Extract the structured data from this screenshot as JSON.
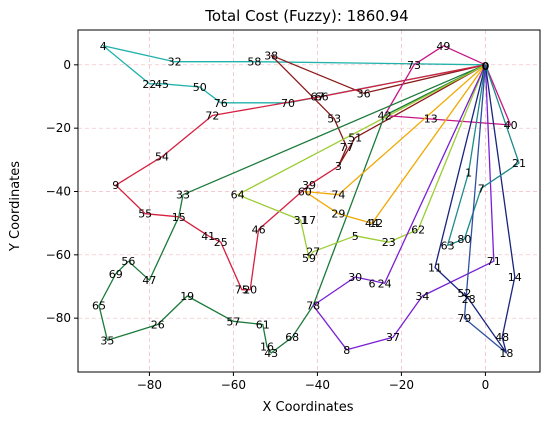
{
  "chart_data": {
    "type": "line",
    "title": "Total Cost (Fuzzy): 1860.94",
    "xlabel": "X Coordinates",
    "ylabel": "Y Coordinates",
    "xlim": [
      -97,
      13
    ],
    "ylim": [
      -97,
      11
    ],
    "xticks": [
      -80,
      -60,
      -40,
      -20,
      0
    ],
    "yticks": [
      0,
      -20,
      -40,
      -60,
      -80
    ],
    "grid": true,
    "depot": {
      "label": "0",
      "x": 0,
      "y": 0
    },
    "nodes": [
      {
        "id": "1",
        "x": -4,
        "y": -34
      },
      {
        "id": "3",
        "x": -35,
        "y": -32
      },
      {
        "id": "4",
        "x": -91,
        "y": 6
      },
      {
        "id": "5",
        "x": -31,
        "y": -54
      },
      {
        "id": "6",
        "x": -27,
        "y": -69
      },
      {
        "id": "7",
        "x": -1,
        "y": -39
      },
      {
        "id": "8",
        "x": -33,
        "y": -90
      },
      {
        "id": "9",
        "x": -88,
        "y": -38
      },
      {
        "id": "11",
        "x": -12,
        "y": -64
      },
      {
        "id": "12",
        "x": -26,
        "y": -50
      },
      {
        "id": "13",
        "x": -13,
        "y": -17
      },
      {
        "id": "14",
        "x": 7,
        "y": -67
      },
      {
        "id": "15",
        "x": -73,
        "y": -48
      },
      {
        "id": "16",
        "x": -52,
        "y": -89
      },
      {
        "id": "17",
        "x": -42,
        "y": -49
      },
      {
        "id": "18",
        "x": 5,
        "y": -91
      },
      {
        "id": "19",
        "x": -71,
        "y": -73
      },
      {
        "id": "20",
        "x": -56,
        "y": -71
      },
      {
        "id": "21",
        "x": 8,
        "y": -31
      },
      {
        "id": "22",
        "x": -80,
        "y": -6
      },
      {
        "id": "23",
        "x": -23,
        "y": -56
      },
      {
        "id": "24",
        "x": -24,
        "y": -69
      },
      {
        "id": "25",
        "x": -63,
        "y": -56
      },
      {
        "id": "26",
        "x": -78,
        "y": -82
      },
      {
        "id": "27",
        "x": -41,
        "y": -59
      },
      {
        "id": "28",
        "x": -4,
        "y": -74
      },
      {
        "id": "29",
        "x": -35,
        "y": -47
      },
      {
        "id": "30",
        "x": -31,
        "y": -67
      },
      {
        "id": "31",
        "x": -44,
        "y": -49
      },
      {
        "id": "32",
        "x": -74,
        "y": 1
      },
      {
        "id": "33",
        "x": -72,
        "y": -41
      },
      {
        "id": "34",
        "x": -15,
        "y": -73
      },
      {
        "id": "35",
        "x": -90,
        "y": -87
      },
      {
        "id": "36",
        "x": -29,
        "y": -9
      },
      {
        "id": "37",
        "x": -22,
        "y": -86
      },
      {
        "id": "38",
        "x": -51,
        "y": 3
      },
      {
        "id": "39",
        "x": -42,
        "y": -38
      },
      {
        "id": "40",
        "x": 6,
        "y": -19
      },
      {
        "id": "41",
        "x": -66,
        "y": -54
      },
      {
        "id": "42",
        "x": -24,
        "y": -16
      },
      {
        "id": "43",
        "x": -51,
        "y": -91
      },
      {
        "id": "44",
        "x": -27,
        "y": -50
      },
      {
        "id": "45",
        "x": -77,
        "y": -6
      },
      {
        "id": "46",
        "x": -54,
        "y": -52
      },
      {
        "id": "47",
        "x": -80,
        "y": -68
      },
      {
        "id": "48",
        "x": 4,
        "y": -86
      },
      {
        "id": "49",
        "x": -10,
        "y": 6
      },
      {
        "id": "50",
        "x": -68,
        "y": -7
      },
      {
        "id": "51",
        "x": -31,
        "y": -23
      },
      {
        "id": "52",
        "x": -5,
        "y": -72
      },
      {
        "id": "53",
        "x": -36,
        "y": -17
      },
      {
        "id": "54",
        "x": -77,
        "y": -29
      },
      {
        "id": "55",
        "x": -81,
        "y": -47
      },
      {
        "id": "56",
        "x": -85,
        "y": -62
      },
      {
        "id": "57",
        "x": -60,
        "y": -81
      },
      {
        "id": "58",
        "x": -55,
        "y": 1
      },
      {
        "id": "59",
        "x": -42,
        "y": -61
      },
      {
        "id": "60",
        "x": -43,
        "y": -40
      },
      {
        "id": "61",
        "x": -53,
        "y": -82
      },
      {
        "id": "62",
        "x": -16,
        "y": -52
      },
      {
        "id": "63",
        "x": -9,
        "y": -57
      },
      {
        "id": "64",
        "x": -59,
        "y": -41
      },
      {
        "id": "65",
        "x": -92,
        "y": -76
      },
      {
        "id": "66",
        "x": -39,
        "y": -10
      },
      {
        "id": "67",
        "x": -40,
        "y": -10
      },
      {
        "id": "68",
        "x": -46,
        "y": -86
      },
      {
        "id": "69",
        "x": -88,
        "y": -66
      },
      {
        "id": "70",
        "x": -47,
        "y": -12
      },
      {
        "id": "71",
        "x": 2,
        "y": -62
      },
      {
        "id": "72",
        "x": -65,
        "y": -16
      },
      {
        "id": "73",
        "x": -17,
        "y": 0
      },
      {
        "id": "74",
        "x": -35,
        "y": -41
      },
      {
        "id": "75",
        "x": -58,
        "y": -71
      },
      {
        "id": "76",
        "x": -63,
        "y": -12
      },
      {
        "id": "77",
        "x": -33,
        "y": -26
      },
      {
        "id": "78",
        "x": -41,
        "y": -76
      },
      {
        "id": "79",
        "x": -5,
        "y": -80
      },
      {
        "id": "80",
        "x": -5,
        "y": -55
      }
    ],
    "routes": [
      {
        "color": "#20b2aa",
        "stops": [
          "0",
          "58",
          "32",
          "4",
          "22",
          "45",
          "50",
          "76",
          "70",
          "0"
        ]
      },
      {
        "color": "#8b1a1a",
        "stops": [
          "0",
          "36",
          "38",
          "53",
          "77",
          "3",
          "51",
          "0"
        ]
      },
      {
        "color": "#d62040",
        "stops": [
          "0",
          "66",
          "72",
          "54",
          "9",
          "55",
          "15",
          "41",
          "25",
          "75",
          "20",
          "46",
          "39",
          "3"
        ]
      },
      {
        "color": "#c71585",
        "stops": [
          "0",
          "49",
          "73",
          "42",
          "40",
          "0"
        ]
      },
      {
        "color": "#1b7a3a",
        "stops": [
          "0",
          "33",
          "15",
          "47",
          "56",
          "69",
          "65",
          "35",
          "26",
          "19",
          "57",
          "61",
          "16",
          "43",
          "68",
          "78",
          "42",
          "0"
        ]
      },
      {
        "color": "#9acd32",
        "stops": [
          "0",
          "62",
          "23",
          "5",
          "27",
          "59",
          "31",
          "64",
          "0"
        ]
      },
      {
        "color": "#f0a800",
        "stops": [
          "0",
          "44",
          "29",
          "60",
          "74",
          "0"
        ]
      },
      {
        "color": "#7a1fd6",
        "stops": [
          "0",
          "71",
          "34",
          "37",
          "8",
          "78",
          "30",
          "24",
          "0"
        ]
      },
      {
        "color": "#1a237e",
        "stops": [
          "0",
          "11",
          "28",
          "52",
          "18",
          "48",
          "14",
          "0"
        ]
      },
      {
        "color": "#1f8a8a",
        "stops": [
          "0",
          "21",
          "7",
          "80",
          "63",
          "1",
          "0"
        ]
      },
      {
        "color": "#2f4f9f",
        "stops": [
          "0",
          "79",
          "18"
        ]
      }
    ]
  }
}
